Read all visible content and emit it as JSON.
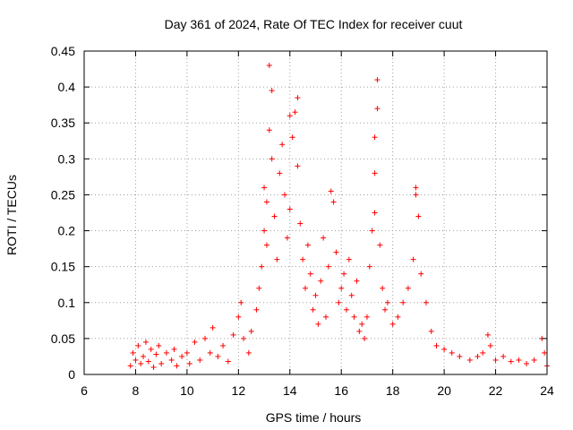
{
  "chart_data": {
    "type": "scatter",
    "title": "Day 361 of 2024, Rate Of TEC Index for receiver cuut",
    "xlabel": "GPS time / hours",
    "ylabel": "ROTI / TECUs",
    "xlim": [
      6,
      24
    ],
    "ylim": [
      0,
      0.45
    ],
    "xticks": [
      6,
      8,
      10,
      12,
      14,
      16,
      18,
      20,
      22,
      24
    ],
    "yticks": [
      0,
      0.05,
      0.1,
      0.15,
      0.2,
      0.25,
      0.3,
      0.35,
      0.4,
      0.45
    ],
    "xtick_labels": [
      "6",
      "8",
      "10",
      "12",
      "14",
      "16",
      "18",
      "20",
      "22",
      "24"
    ],
    "ytick_labels": [
      "0",
      "0.05",
      "0.1",
      "0.15",
      "0.2",
      "0.25",
      "0.3",
      "0.35",
      "0.4",
      "0.45"
    ],
    "grid": true,
    "marker": "+",
    "color": "#ff0000",
    "series": [
      {
        "name": "ROTI",
        "points": [
          [
            7.8,
            0.012
          ],
          [
            7.9,
            0.03
          ],
          [
            8.0,
            0.02
          ],
          [
            8.1,
            0.04
          ],
          [
            8.2,
            0.015
          ],
          [
            8.3,
            0.025
          ],
          [
            8.4,
            0.045
          ],
          [
            8.5,
            0.018
          ],
          [
            8.6,
            0.035
          ],
          [
            8.7,
            0.01
          ],
          [
            8.8,
            0.028
          ],
          [
            8.9,
            0.04
          ],
          [
            9.0,
            0.015
          ],
          [
            9.2,
            0.03
          ],
          [
            9.4,
            0.02
          ],
          [
            9.5,
            0.035
          ],
          [
            9.6,
            0.012
          ],
          [
            9.8,
            0.025
          ],
          [
            10.0,
            0.03
          ],
          [
            10.1,
            0.015
          ],
          [
            10.3,
            0.045
          ],
          [
            10.5,
            0.02
          ],
          [
            10.7,
            0.05
          ],
          [
            10.9,
            0.03
          ],
          [
            11.0,
            0.065
          ],
          [
            11.2,
            0.025
          ],
          [
            11.4,
            0.04
          ],
          [
            11.6,
            0.018
          ],
          [
            11.8,
            0.055
          ],
          [
            12.0,
            0.08
          ],
          [
            12.1,
            0.1
          ],
          [
            12.2,
            0.05
          ],
          [
            12.4,
            0.03
          ],
          [
            12.5,
            0.06
          ],
          [
            12.7,
            0.09
          ],
          [
            12.8,
            0.12
          ],
          [
            12.9,
            0.15
          ],
          [
            13.0,
            0.2
          ],
          [
            13.0,
            0.26
          ],
          [
            13.1,
            0.18
          ],
          [
            13.1,
            0.24
          ],
          [
            13.2,
            0.34
          ],
          [
            13.2,
            0.43
          ],
          [
            13.3,
            0.395
          ],
          [
            13.3,
            0.3
          ],
          [
            13.4,
            0.22
          ],
          [
            13.5,
            0.16
          ],
          [
            13.6,
            0.28
          ],
          [
            13.7,
            0.32
          ],
          [
            13.8,
            0.25
          ],
          [
            13.9,
            0.19
          ],
          [
            14.0,
            0.36
          ],
          [
            14.0,
            0.23
          ],
          [
            14.1,
            0.33
          ],
          [
            14.2,
            0.365
          ],
          [
            14.3,
            0.385
          ],
          [
            14.3,
            0.29
          ],
          [
            14.4,
            0.21
          ],
          [
            14.5,
            0.16
          ],
          [
            14.6,
            0.12
          ],
          [
            14.7,
            0.18
          ],
          [
            14.8,
            0.14
          ],
          [
            14.9,
            0.09
          ],
          [
            15.0,
            0.11
          ],
          [
            15.1,
            0.07
          ],
          [
            15.2,
            0.13
          ],
          [
            15.3,
            0.19
          ],
          [
            15.4,
            0.08
          ],
          [
            15.5,
            0.15
          ],
          [
            15.6,
            0.255
          ],
          [
            15.7,
            0.24
          ],
          [
            15.8,
            0.17
          ],
          [
            15.9,
            0.1
          ],
          [
            16.0,
            0.12
          ],
          [
            16.1,
            0.14
          ],
          [
            16.2,
            0.09
          ],
          [
            16.3,
            0.16
          ],
          [
            16.4,
            0.11
          ],
          [
            16.5,
            0.08
          ],
          [
            16.6,
            0.13
          ],
          [
            16.7,
            0.06
          ],
          [
            16.8,
            0.07
          ],
          [
            16.9,
            0.05
          ],
          [
            17.0,
            0.08
          ],
          [
            17.1,
            0.15
          ],
          [
            17.2,
            0.2
          ],
          [
            17.3,
            0.225
          ],
          [
            17.3,
            0.28
          ],
          [
            17.3,
            0.33
          ],
          [
            17.4,
            0.37
          ],
          [
            17.4,
            0.41
          ],
          [
            17.5,
            0.18
          ],
          [
            17.6,
            0.12
          ],
          [
            17.7,
            0.09
          ],
          [
            17.8,
            0.1
          ],
          [
            18.0,
            0.07
          ],
          [
            18.2,
            0.08
          ],
          [
            18.4,
            0.1
          ],
          [
            18.6,
            0.12
          ],
          [
            18.8,
            0.16
          ],
          [
            18.9,
            0.26
          ],
          [
            18.9,
            0.25
          ],
          [
            19.0,
            0.22
          ],
          [
            19.1,
            0.14
          ],
          [
            19.3,
            0.1
          ],
          [
            19.5,
            0.06
          ],
          [
            19.7,
            0.04
          ],
          [
            20.0,
            0.035
          ],
          [
            20.3,
            0.03
          ],
          [
            20.6,
            0.025
          ],
          [
            21.0,
            0.02
          ],
          [
            21.3,
            0.025
          ],
          [
            21.5,
            0.03
          ],
          [
            21.7,
            0.055
          ],
          [
            21.8,
            0.04
          ],
          [
            22.0,
            0.02
          ],
          [
            22.3,
            0.025
          ],
          [
            22.6,
            0.018
          ],
          [
            22.9,
            0.02
          ],
          [
            23.2,
            0.015
          ],
          [
            23.5,
            0.02
          ],
          [
            23.8,
            0.05
          ],
          [
            23.9,
            0.03
          ],
          [
            24.0,
            0.012
          ]
        ]
      }
    ]
  }
}
